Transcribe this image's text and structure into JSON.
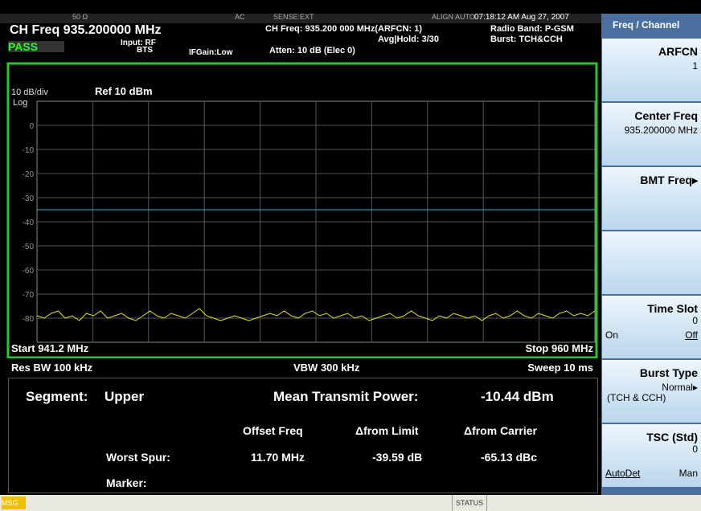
{
  "header": {
    "impedance": "50 Ω",
    "coupling": "AC",
    "sense": "SENSE:EXT",
    "align": "ALIGN AUTO",
    "timestamp": "07:18:12 AM Aug 27, 2007",
    "ch_freq": "CH Freq  935.200000 MHz",
    "status": "PASS",
    "input": "Input: RF",
    "input_sub": "BTS",
    "ifgain": "IFGain:Low",
    "ch_freq_detail": "CH Freq: 935.200 000 MHz(ARFCN: 1)",
    "avg_hold": "Avg|Hold: 3/30",
    "atten": "Atten: 10 dB (Elec 0)",
    "radio_band": "Radio Band: P-GSM",
    "burst": "Burst: TCH&CCH"
  },
  "chart_data": {
    "type": "line",
    "scale_label": "10 dB/div",
    "log_label": "Log",
    "ref_label": "Ref  10 dBm",
    "start_label": "Start  941.2 MHz",
    "stop_label": "Stop  960 MHz",
    "rbw_label": "Res BW  100 kHz",
    "vbw_label": "VBW  300 kHz",
    "sweep_label": "Sweep  10 ms",
    "ylim": [
      -90,
      10
    ],
    "yticks": [
      0,
      -10,
      -20,
      -30,
      -40,
      -50,
      -60,
      -70,
      -80
    ],
    "grid": true,
    "limit_line": -35,
    "limit_color": "#2fb8c8",
    "trace_color": "#e8e800",
    "trace": [
      -79,
      -80,
      -78,
      -77,
      -80,
      -79,
      -81,
      -78,
      -79,
      -77,
      -80,
      -79,
      -78,
      -80,
      -81,
      -79,
      -77,
      -79,
      -80,
      -78,
      -79,
      -80,
      -78,
      -76,
      -79,
      -80,
      -81,
      -80,
      -79,
      -80,
      -81,
      -80,
      -79,
      -78,
      -79,
      -77,
      -79,
      -80,
      -78,
      -77,
      -79,
      -78,
      -80,
      -79,
      -78,
      -80,
      -79,
      -81,
      -80,
      -79,
      -78,
      -80,
      -79,
      -77,
      -79,
      -80,
      -81,
      -79,
      -80,
      -78,
      -79,
      -80,
      -79,
      -81,
      -79,
      -78,
      -80,
      -79,
      -77,
      -79,
      -80,
      -78,
      -79,
      -80,
      -78,
      -77,
      -79,
      -78,
      -79,
      -77
    ]
  },
  "results": {
    "segment_label": "Segment:",
    "segment": "Upper",
    "mean_power_label": "Mean Transmit Power:",
    "mean_power": "-10.44 dBm",
    "col_offset": "Offset Freq",
    "col_limit": "Δfrom Limit",
    "col_carrier": "Δfrom Carrier",
    "worst_label": "Worst Spur:",
    "worst_offset": "11.70 MHz",
    "worst_limit": "-39.59 dB",
    "worst_carrier": "-65.13 dBc",
    "marker_label": "Marker:"
  },
  "softkeys": {
    "menu": "Freq / Channel",
    "keys": [
      {
        "label": "ARFCN",
        "value": "1"
      },
      {
        "label": "Center Freq",
        "value": "935.200000 MHz"
      },
      {
        "label": "BMT Freq▸"
      },
      {},
      {
        "label": "Time Slot",
        "value": "0",
        "left": "On",
        "right": "Off"
      },
      {
        "label": "Burst Type",
        "value": "Normal▸",
        "sub": "(TCH & CCH)"
      },
      {
        "label": "TSC (Std)",
        "value": "0",
        "left": "AutoDet",
        "right": "Man"
      }
    ]
  },
  "footer": {
    "msg": "MSG",
    "status": "STATUS"
  }
}
